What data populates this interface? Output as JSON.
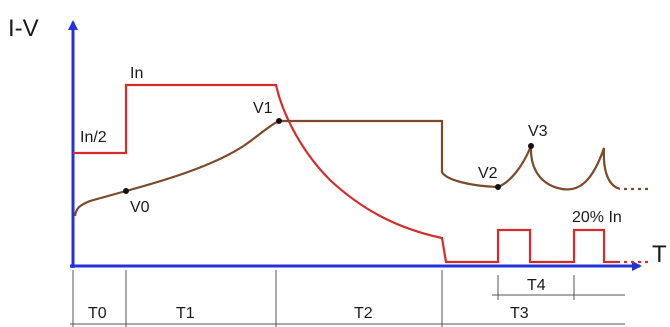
{
  "axes": {
    "y_title": "I-V",
    "x_title": "T"
  },
  "current_labels": {
    "half": "In/2",
    "full": "In",
    "pulse": "20% In"
  },
  "voltage_points": [
    "V0",
    "V1",
    "V2",
    "V3"
  ],
  "periods": [
    "T0",
    "T1",
    "T2",
    "T3",
    "T4"
  ],
  "continuation": "...",
  "colors": {
    "axis": "#2432d8",
    "current": "#d62b2b",
    "voltage": "#7a4a2a",
    "marker": "#111111",
    "grid": "#555555"
  }
}
